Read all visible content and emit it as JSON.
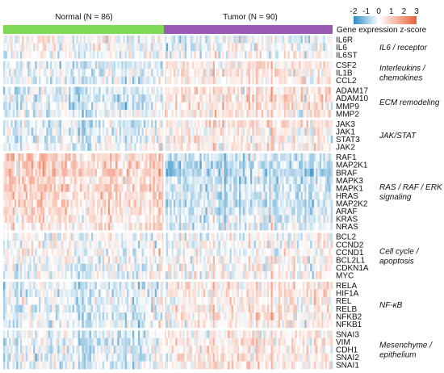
{
  "colors": {
    "normal_bar": "#7ed957",
    "tumor_bar": "#9b59b6",
    "low": "#2b8cc4",
    "mid": "#ffffff",
    "high": "#e8623a"
  },
  "chart_data": {
    "type": "heatmap",
    "title": "",
    "legend": {
      "title": "Gene expression z-score",
      "ticks": [
        -2,
        -1,
        0,
        1,
        2,
        3
      ],
      "tick_labels": [
        "-2",
        "-1",
        "0",
        "1",
        "2",
        "3"
      ],
      "range": [
        -2,
        3
      ],
      "placement": "top-right"
    },
    "columns": {
      "groups": [
        {
          "label": "Normal (N = 86)",
          "count": 86,
          "color": "#7ed957"
        },
        {
          "label": "Tumor (N = 90)",
          "count": 90,
          "color": "#9b59b6"
        }
      ]
    },
    "row_blocks": [
      {
        "label_lines": [
          "IL6 / receptor"
        ],
        "genes": [
          "IL6R",
          "IL6",
          "IL6ST"
        ]
      },
      {
        "label_lines": [
          "Interleukins /",
          "chemokines"
        ],
        "genes": [
          "CSF2",
          "IL1B",
          "CCL2"
        ]
      },
      {
        "label_lines": [
          "ECM remodeling"
        ],
        "genes": [
          "ADAM17",
          "ADAM10",
          "MMP9",
          "MMP2"
        ]
      },
      {
        "label_lines": [
          "JAK/STAT"
        ],
        "genes": [
          "JAK3",
          "JAK1",
          "STAT3",
          "JAK2"
        ]
      },
      {
        "label_lines": [
          "RAS / RAF / ERK",
          "signaling"
        ],
        "genes": [
          "RAF1",
          "MAP2K1",
          "BRAF",
          "MAPK3",
          "MAPK1",
          "HRAS",
          "MAP2K2",
          "ARAF",
          "KRAS",
          "NRAS"
        ]
      },
      {
        "label_lines": [
          "Cell cycle /",
          "apoptosis"
        ],
        "genes": [
          "BCL2",
          "CCND2",
          "CCND1",
          "BCL2L1",
          "CDKN1A",
          "MYC"
        ]
      },
      {
        "label_lines": [
          "NF-κB"
        ],
        "genes": [
          "RELA",
          "HIF1A",
          "REL",
          "RELB",
          "NFKB2",
          "NFKB1"
        ]
      },
      {
        "label_lines": [
          "Mesenchyme /",
          "epithelium"
        ],
        "genes": [
          "SNAI3",
          "VIM",
          "CDH1",
          "SNAI2",
          "SNAI1"
        ]
      }
    ],
    "group_tendency": {
      "IL6R": [
        0.1,
        -0.2
      ],
      "IL6": [
        0.0,
        -0.1
      ],
      "IL6ST": [
        -0.1,
        0.1
      ],
      "CSF2": [
        -0.3,
        0.3
      ],
      "IL1B": [
        -0.2,
        0.3
      ],
      "CCL2": [
        -0.3,
        0.2
      ],
      "ADAM17": [
        -0.3,
        0.4
      ],
      "ADAM10": [
        -0.4,
        0.4
      ],
      "MMP9": [
        -0.3,
        0.4
      ],
      "MMP2": [
        -0.2,
        0.3
      ],
      "JAK3": [
        -0.4,
        0.3
      ],
      "JAK1": [
        -0.2,
        0.1
      ],
      "STAT3": [
        -0.2,
        0.2
      ],
      "JAK2": [
        -0.2,
        0.3
      ],
      "RAF1": [
        0.6,
        -0.5
      ],
      "MAP2K1": [
        0.7,
        -0.6
      ],
      "BRAF": [
        0.7,
        -0.6
      ],
      "MAPK3": [
        0.6,
        -0.5
      ],
      "MAPK1": [
        0.6,
        -0.5
      ],
      "HRAS": [
        0.5,
        -0.4
      ],
      "MAP2K2": [
        0.6,
        -0.5
      ],
      "ARAF": [
        0.5,
        -0.4
      ],
      "KRAS": [
        0.3,
        -0.3
      ],
      "NRAS": [
        0.3,
        -0.3
      ],
      "BCL2": [
        0.1,
        -0.1
      ],
      "CCND2": [
        0.0,
        0.0
      ],
      "CCND1": [
        0.1,
        -0.1
      ],
      "BCL2L1": [
        -0.1,
        0.1
      ],
      "CDKN1A": [
        -0.2,
        0.1
      ],
      "MYC": [
        -0.1,
        0.1
      ],
      "RELA": [
        -0.3,
        0.3
      ],
      "HIF1A": [
        -0.3,
        0.3
      ],
      "REL": [
        -0.2,
        0.2
      ],
      "RELB": [
        -0.3,
        0.3
      ],
      "NFKB2": [
        -0.3,
        0.3
      ],
      "NFKB1": [
        -0.2,
        0.2
      ],
      "SNAI3": [
        -0.2,
        0.2
      ],
      "VIM": [
        -0.3,
        0.3
      ],
      "CDH1": [
        -0.3,
        0.3
      ],
      "SNAI2": [
        -0.3,
        0.3
      ],
      "SNAI1": [
        -0.2,
        0.2
      ]
    }
  }
}
